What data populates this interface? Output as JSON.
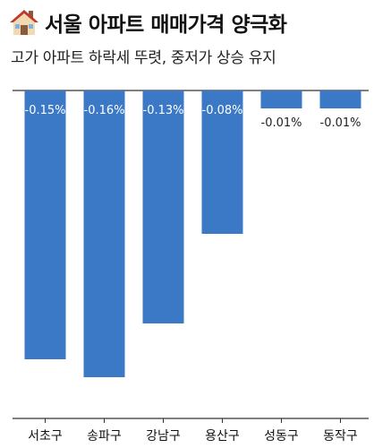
{
  "header": {
    "title": "서울 아파트 매매가격 양극화",
    "subtitle": "고가 아파트 하락세 뚜렷, 중저가 상승 유지",
    "icon": "house-icon"
  },
  "colors": {
    "bar": "#3b78c6",
    "axis": "#333333",
    "label_inside": "#ffffff",
    "label_outside": "#222222"
  },
  "chart_data": {
    "type": "bar",
    "title": "",
    "categories": [
      "서초구",
      "송파구",
      "강남구",
      "용산구",
      "성동구",
      "동작구"
    ],
    "values": [
      -0.15,
      -0.16,
      -0.13,
      -0.08,
      -0.01,
      -0.01
    ],
    "value_labels": [
      "-0.15%",
      "-0.16%",
      "-0.13%",
      "-0.08%",
      "-0.01%",
      "-0.01%"
    ],
    "xlabel": "",
    "ylabel": "",
    "ylim": [
      -0.16,
      0
    ],
    "grid": false,
    "legend": "none"
  }
}
